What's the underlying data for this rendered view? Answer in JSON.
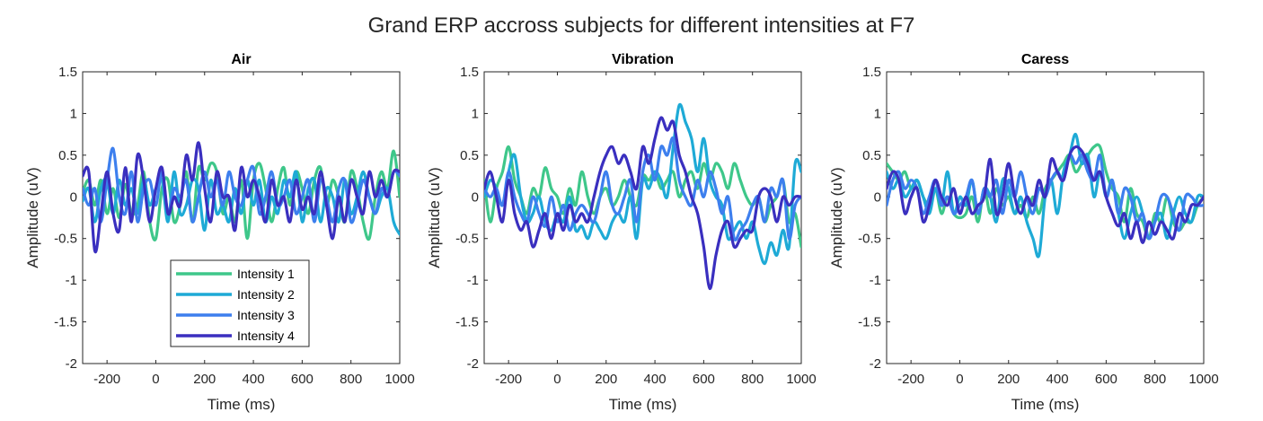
{
  "figure_title": "Grand ERP accross subjects for different intensities at F7",
  "colors": {
    "Intensity 1": "#3ec78a",
    "Intensity 2": "#1eaad6",
    "Intensity 3": "#3d7fee",
    "Intensity 4": "#3a2fbf"
  },
  "legend": {
    "location": "lower-center of first panel",
    "entries": [
      "Intensity 1",
      "Intensity 2",
      "Intensity 3",
      "Intensity 4"
    ]
  },
  "chart_data": [
    {
      "type": "line",
      "title": "Air",
      "xlabel": "Time (ms)",
      "ylabel": "Amplitude (uV)",
      "xlim": [
        -300,
        1000
      ],
      "ylim": [
        -2,
        1.5
      ],
      "xticks": [
        -200,
        0,
        200,
        400,
        600,
        800,
        1000
      ],
      "yticks": [
        -2,
        -1.5,
        -1,
        -0.5,
        0,
        0.5,
        1,
        1.5
      ],
      "grid": false,
      "x": [
        -300,
        -275,
        -250,
        -225,
        -200,
        -175,
        -150,
        -125,
        -100,
        -75,
        -50,
        -25,
        0,
        25,
        50,
        75,
        100,
        125,
        150,
        175,
        200,
        225,
        250,
        275,
        300,
        325,
        350,
        375,
        400,
        425,
        450,
        475,
        500,
        525,
        550,
        575,
        600,
        625,
        650,
        675,
        700,
        725,
        750,
        775,
        800,
        825,
        850,
        875,
        900,
        925,
        950,
        975,
        1000
      ],
      "series": [
        {
          "name": "Intensity 1",
          "values": [
            0.05,
            0.2,
            -0.1,
            0.2,
            -0.2,
            0.1,
            -0.25,
            0.15,
            -0.2,
            -0.1,
            0.3,
            -0.3,
            -0.5,
            0.1,
            0.2,
            -0.3,
            -0.1,
            0.3,
            -0.3,
            0.35,
            0.2,
            0.4,
            0.3,
            -0.2,
            0.0,
            -0.3,
            0.2,
            -0.5,
            0.2,
            0.4,
            0.1,
            -0.3,
            0.1,
            0.35,
            -0.1,
            0.3,
            0.1,
            -0.2,
            0.2,
            0.35,
            -0.1,
            0.2,
            0.0,
            -0.3,
            0.3,
            0.1,
            -0.3,
            -0.5,
            0.0,
            0.3,
            0.1,
            0.55,
            0.0
          ]
        },
        {
          "name": "Intensity 2",
          "values": [
            -0.05,
            0.1,
            -0.3,
            0.1,
            0.2,
            -0.2,
            0.2,
            -0.1,
            0.1,
            -0.2,
            0.2,
            -0.1,
            0.1,
            0.2,
            -0.3,
            0.3,
            -0.2,
            -0.1,
            0.2,
            0.1,
            -0.4,
            0.2,
            -0.2,
            -0.1,
            -0.3,
            0.1,
            -0.2,
            0.2,
            -0.1,
            0.2,
            -0.3,
            0.0,
            -0.2,
            0.2,
            0.0,
            0.3,
            -0.3,
            0.1,
            0.2,
            -0.3,
            0.1,
            0.0,
            -0.3,
            0.2,
            -0.2,
            0.0,
            0.3,
            0.0,
            -0.2,
            0.0,
            0.1,
            -0.3,
            -0.45
          ]
        },
        {
          "name": "Intensity 3",
          "values": [
            0.1,
            -0.1,
            0.1,
            -0.3,
            0.2,
            0.58,
            0.0,
            -0.2,
            0.3,
            -0.3,
            0.1,
            0.2,
            -0.1,
            0.3,
            -0.2,
            0.1,
            0.0,
            0.2,
            -0.3,
            0.0,
            0.3,
            0.0,
            0.2,
            -0.1,
            0.3,
            0.0,
            -0.1,
            0.2,
            0.35,
            -0.2,
            0.0,
            0.3,
            -0.1,
            0.0,
            0.2,
            -0.2,
            0.0,
            0.2,
            -0.3,
            0.2,
            0.0,
            -0.3,
            0.1,
            0.2,
            -0.3,
            -0.1,
            0.2,
            0.0,
            -0.2,
            0.1,
            0.0,
            0.3,
            0.25
          ]
        },
        {
          "name": "Intensity 4",
          "values": [
            0.25,
            0.3,
            -0.65,
            -0.2,
            0.3,
            -0.2,
            -0.4,
            0.35,
            -0.3,
            0.5,
            0.2,
            -0.3,
            0.1,
            0.35,
            -0.2,
            0.0,
            -0.1,
            0.5,
            0.2,
            0.65,
            0.1,
            -0.3,
            0.3,
            0.0,
            0.0,
            -0.4,
            0.35,
            0.0,
            0.2,
            0.0,
            -0.3,
            0.2,
            -0.1,
            0.0,
            -0.3,
            0.2,
            -0.15,
            0.0,
            -0.2,
            0.3,
            -0.1,
            -0.5,
            0.0,
            -0.3,
            0.2,
            0.0,
            -0.2,
            0.3,
            0.0,
            0.2,
            0.0,
            0.3,
            0.3
          ]
        }
      ]
    },
    {
      "type": "line",
      "title": "Vibration",
      "xlabel": "Time (ms)",
      "ylabel": "Amplitude (uV)",
      "xlim": [
        -300,
        1000
      ],
      "ylim": [
        -2,
        1.5
      ],
      "xticks": [
        -200,
        0,
        200,
        400,
        600,
        800,
        1000
      ],
      "yticks": [
        -2,
        -1.5,
        -1,
        -0.5,
        0,
        0.5,
        1,
        1.5
      ],
      "grid": false,
      "x": [
        -300,
        -275,
        -250,
        -225,
        -200,
        -175,
        -150,
        -125,
        -100,
        -75,
        -50,
        -25,
        0,
        25,
        50,
        75,
        100,
        125,
        150,
        175,
        200,
        225,
        250,
        275,
        300,
        325,
        350,
        375,
        400,
        425,
        450,
        475,
        500,
        525,
        550,
        575,
        600,
        625,
        650,
        675,
        700,
        725,
        750,
        775,
        800,
        825,
        850,
        875,
        900,
        925,
        950,
        975,
        1000
      ],
      "series": [
        {
          "name": "Intensity 1",
          "values": [
            0.2,
            -0.3,
            0.1,
            0.3,
            0.6,
            0.2,
            0.0,
            -0.2,
            0.1,
            0.0,
            0.35,
            0.1,
            0.0,
            -0.2,
            0.1,
            -0.1,
            0.3,
            0.0,
            -0.2,
            0.0,
            0.1,
            -0.1,
            0.0,
            0.2,
            0.0,
            -0.1,
            0.25,
            0.2,
            0.3,
            0.1,
            0.2,
            0.3,
            0.0,
            0.2,
            0.3,
            0.1,
            0.4,
            0.2,
            0.4,
            0.3,
            0.1,
            0.4,
            0.2,
            0.0,
            -0.1,
            0.0,
            -0.3,
            -0.1,
            0.0,
            0.2,
            -0.3,
            -0.2,
            -0.6
          ]
        },
        {
          "name": "Intensity 2",
          "values": [
            0.0,
            0.2,
            0.1,
            -0.1,
            0.3,
            0.5,
            0.0,
            -0.3,
            -0.2,
            0.0,
            -0.3,
            -0.4,
            -0.2,
            -0.3,
            0.0,
            -0.4,
            -0.35,
            -0.5,
            -0.3,
            -0.4,
            -0.5,
            -0.3,
            -0.2,
            -0.3,
            0.0,
            -0.5,
            0.2,
            0.1,
            0.3,
            0.2,
            0.0,
            0.6,
            1.1,
            0.9,
            0.7,
            0.3,
            0.7,
            0.2,
            0.0,
            -0.1,
            -0.5,
            -0.4,
            -0.3,
            -0.5,
            -0.3,
            -0.6,
            -0.8,
            -0.55,
            -0.7,
            -0.4,
            -0.6,
            0.4,
            0.3
          ]
        },
        {
          "name": "Intensity 3",
          "values": [
            0.1,
            0.0,
            0.1,
            -0.1,
            0.3,
            0.0,
            -0.2,
            -0.3,
            0.0,
            -0.2,
            -0.35,
            0.0,
            -0.3,
            -0.1,
            -0.4,
            -0.2,
            -0.1,
            -0.2,
            -0.3,
            0.0,
            0.3,
            -0.1,
            -0.2,
            0.0,
            0.2,
            -0.3,
            0.3,
            0.5,
            0.2,
            0.6,
            0.5,
            0.7,
            0.2,
            0.0,
            -0.1,
            0.2,
            0.0,
            0.3,
            0.1,
            -0.2,
            0.0,
            -0.5,
            -0.4,
            -0.3,
            -0.1,
            0.0,
            -0.3,
            0.1,
            0.0,
            0.2,
            -0.5,
            -0.1,
            0.0
          ]
        },
        {
          "name": "Intensity 4",
          "values": [
            0.1,
            0.3,
            0.0,
            -0.3,
            0.2,
            -0.2,
            -0.4,
            -0.3,
            -0.6,
            -0.4,
            -0.2,
            -0.5,
            -0.2,
            -0.4,
            -0.1,
            -0.3,
            -0.2,
            -0.3,
            0.0,
            0.3,
            0.5,
            0.6,
            0.4,
            0.5,
            0.3,
            0.1,
            0.6,
            0.4,
            0.7,
            0.95,
            0.8,
            0.9,
            0.5,
            0.3,
            0.0,
            -0.2,
            -0.6,
            -1.1,
            -0.7,
            -0.4,
            -0.3,
            -0.6,
            -0.5,
            -0.4,
            -0.4,
            0.0,
            0.1,
            0.0,
            -0.3,
            0.0,
            -0.1,
            0.0,
            0.0
          ]
        }
      ]
    },
    {
      "type": "line",
      "title": "Caress",
      "xlabel": "Time (ms)",
      "ylabel": "Amplitude (uV)",
      "xlim": [
        -300,
        1000
      ],
      "ylim": [
        -2,
        1.5
      ],
      "xticks": [
        -200,
        0,
        200,
        400,
        600,
        800,
        1000
      ],
      "yticks": [
        -2,
        -1.5,
        -1,
        -0.5,
        0,
        0.5,
        1,
        1.5
      ],
      "grid": false,
      "x": [
        -300,
        -275,
        -250,
        -225,
        -200,
        -175,
        -150,
        -125,
        -100,
        -75,
        -50,
        -25,
        0,
        25,
        50,
        75,
        100,
        125,
        150,
        175,
        200,
        225,
        250,
        275,
        300,
        325,
        350,
        375,
        400,
        425,
        450,
        475,
        500,
        525,
        550,
        575,
        600,
        625,
        650,
        675,
        700,
        725,
        750,
        775,
        800,
        825,
        850,
        875,
        900,
        925,
        950,
        975,
        1000
      ],
      "series": [
        {
          "name": "Intensity 1",
          "values": [
            0.4,
            0.3,
            0.2,
            0.3,
            0.1,
            0.2,
            0.0,
            -0.1,
            0.1,
            -0.2,
            0.0,
            -0.2,
            -0.25,
            -0.2,
            0.0,
            -0.3,
            0.1,
            -0.2,
            0.1,
            -0.1,
            0.0,
            -0.2,
            -0.1,
            -0.25,
            0.0,
            -0.2,
            0.1,
            0.2,
            0.3,
            0.4,
            0.5,
            0.3,
            0.4,
            0.5,
            0.6,
            0.6,
            0.3,
            0.1,
            0.0,
            -0.3,
            0.1,
            -0.2,
            -0.3,
            -0.5,
            -0.2,
            -0.3,
            0.0,
            -0.3,
            -0.4,
            -0.3,
            -0.3,
            -0.1,
            0.0
          ]
        },
        {
          "name": "Intensity 2",
          "values": [
            0.3,
            0.1,
            0.2,
            0.0,
            0.1,
            0.2,
            0.0,
            -0.2,
            0.1,
            -0.1,
            0.3,
            -0.2,
            0.0,
            -0.1,
            0.2,
            -0.2,
            0.1,
            0.0,
            -0.3,
            0.2,
            0.1,
            -0.2,
            0.0,
            -0.3,
            -0.5,
            -0.7,
            0.0,
            0.2,
            -0.2,
            0.3,
            0.5,
            0.75,
            0.4,
            0.5,
            0.0,
            0.3,
            0.0,
            0.2,
            -0.2,
            -0.5,
            -0.2,
            0.0,
            -0.2,
            -0.5,
            -0.3,
            -0.2,
            -0.5,
            -0.2,
            0.0,
            -0.2,
            -0.3,
            0.0,
            0.0
          ]
        },
        {
          "name": "Intensity 3",
          "values": [
            -0.1,
            0.2,
            0.3,
            0.1,
            0.2,
            0.1,
            -0.2,
            0.0,
            0.2,
            -0.1,
            0.0,
            -0.2,
            -0.1,
            0.0,
            0.2,
            -0.2,
            0.1,
            0.0,
            0.2,
            -0.2,
            0.2,
            0.0,
            0.3,
            0.0,
            -0.2,
            0.1,
            0.0,
            0.2,
            0.3,
            0.2,
            0.5,
            0.4,
            0.5,
            0.3,
            0.2,
            0.5,
            0.0,
            0.2,
            -0.2,
            0.1,
            0.0,
            -0.3,
            -0.2,
            -0.5,
            -0.3,
            0.0,
            0.0,
            -0.2,
            -0.4,
            0.0,
            0.0,
            -0.1,
            -0.1
          ]
        },
        {
          "name": "Intensity 4",
          "values": [
            0.1,
            0.3,
            0.2,
            -0.2,
            0.0,
            0.1,
            -0.3,
            -0.1,
            0.2,
            0.0,
            -0.1,
            0.1,
            -0.2,
            0.0,
            -0.2,
            -0.1,
            0.0,
            0.45,
            -0.2,
            0.0,
            0.4,
            0.0,
            -0.2,
            0.0,
            -0.1,
            0.2,
            0.0,
            0.45,
            0.3,
            0.2,
            0.5,
            0.6,
            0.55,
            0.4,
            0.2,
            0.3,
            0.0,
            -0.2,
            -0.35,
            -0.2,
            -0.5,
            -0.3,
            -0.55,
            -0.3,
            -0.45,
            -0.3,
            -0.4,
            -0.5,
            -0.2,
            -0.3,
            -0.1,
            -0.1,
            0.0
          ]
        }
      ]
    }
  ]
}
